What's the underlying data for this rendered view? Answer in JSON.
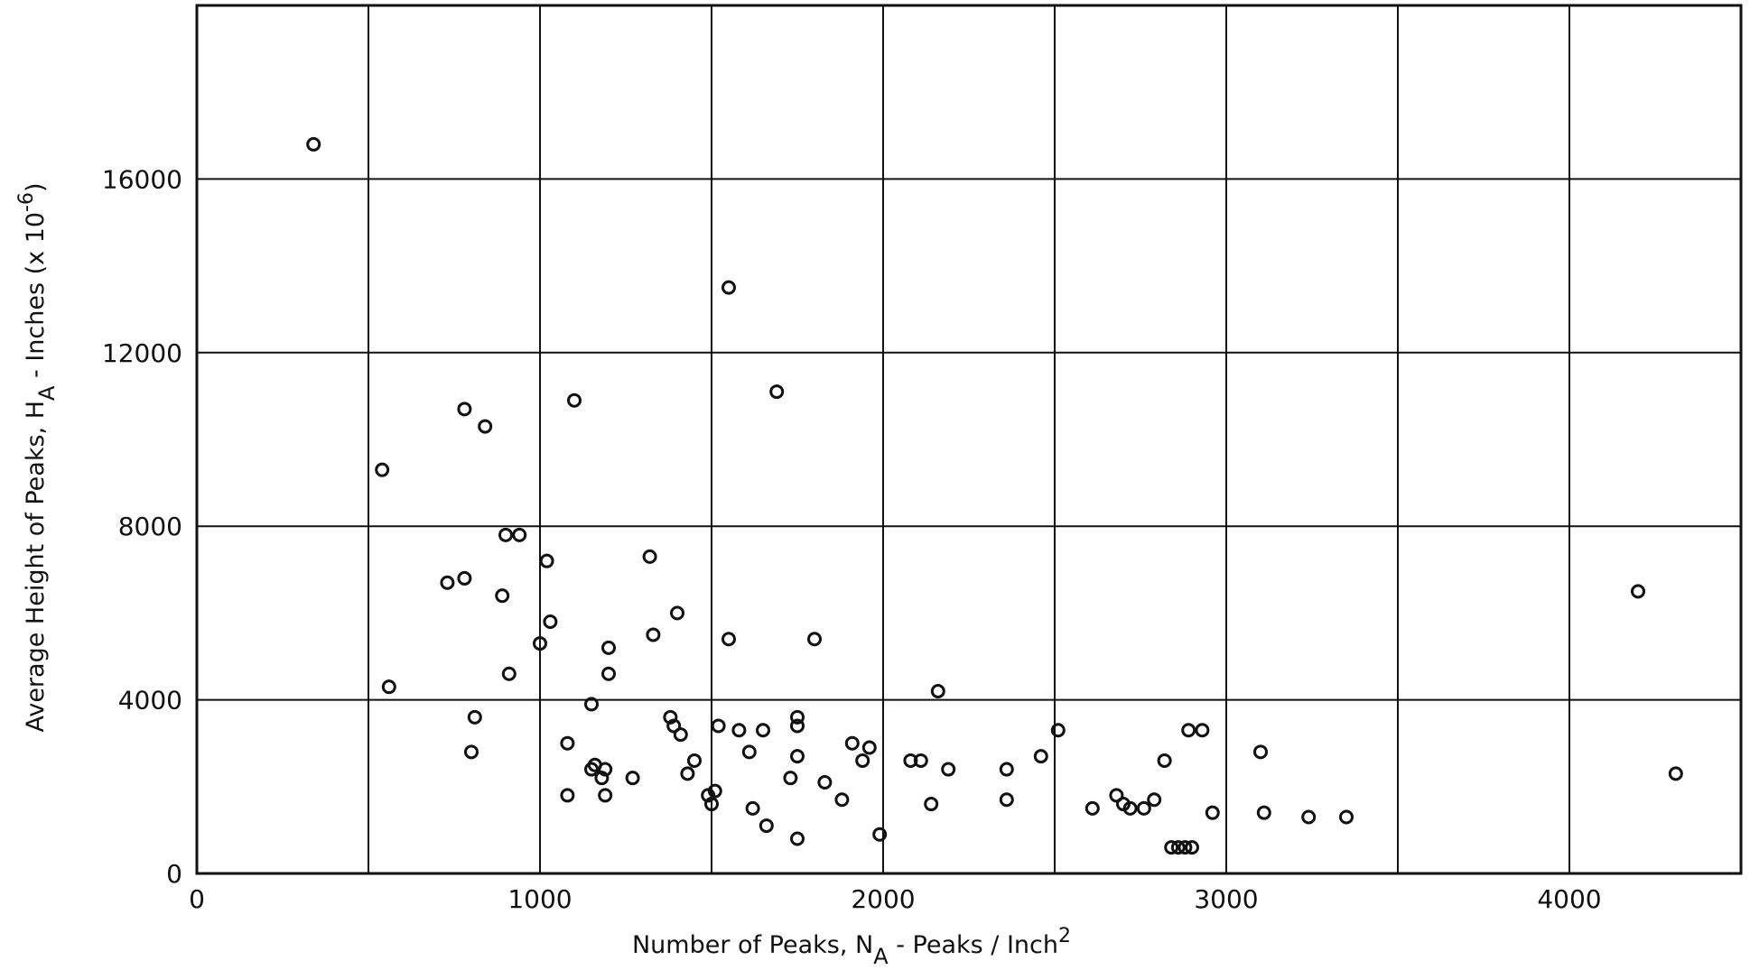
{
  "chart_data": {
    "type": "scatter",
    "title": "",
    "xlabel": {
      "text": "Number of Peaks, N",
      "subscript": "A",
      "suffix": " - Peaks / Inch",
      "superscript": "2"
    },
    "ylabel": {
      "text": "Average Height of Peaks, H",
      "subscript": "A",
      "suffix": " - Inches (x 10",
      "superscript": "-6",
      "closing": ")"
    },
    "xlim": [
      0,
      4500
    ],
    "ylim": [
      0,
      20000
    ],
    "x_ticks": [
      0,
      1000,
      2000,
      3000,
      4000
    ],
    "x_tick_labels": [
      "0",
      "1000",
      "2000",
      "3000",
      "4000"
    ],
    "x_gridlines": [
      0,
      500,
      1000,
      1500,
      2000,
      2500,
      3000,
      3500,
      4000,
      4500
    ],
    "y_ticks": [
      0,
      4000,
      8000,
      12000,
      16000
    ],
    "y_tick_labels": [
      "0",
      "4000",
      "8000",
      "12000",
      "16000"
    ],
    "y_gridlines": [
      0,
      4000,
      8000,
      12000,
      16000
    ],
    "grid": true,
    "marker": "open-circle",
    "points": [
      [
        340,
        16800
      ],
      [
        540,
        9300
      ],
      [
        560,
        4300
      ],
      [
        730,
        6700
      ],
      [
        780,
        10700
      ],
      [
        780,
        6800
      ],
      [
        800,
        2800
      ],
      [
        810,
        3600
      ],
      [
        840,
        10300
      ],
      [
        900,
        7800
      ],
      [
        940,
        7800
      ],
      [
        890,
        6400
      ],
      [
        910,
        4600
      ],
      [
        1000,
        5300
      ],
      [
        1020,
        7200
      ],
      [
        1030,
        5800
      ],
      [
        1080,
        3000
      ],
      [
        1080,
        1800
      ],
      [
        1100,
        10900
      ],
      [
        1150,
        3900
      ],
      [
        1150,
        2400
      ],
      [
        1160,
        2500
      ],
      [
        1180,
        2200
      ],
      [
        1190,
        1800
      ],
      [
        1190,
        2400
      ],
      [
        1200,
        5200
      ],
      [
        1200,
        4600
      ],
      [
        1270,
        2200
      ],
      [
        1320,
        7300
      ],
      [
        1330,
        5500
      ],
      [
        1380,
        3600
      ],
      [
        1390,
        3400
      ],
      [
        1400,
        6000
      ],
      [
        1410,
        3200
      ],
      [
        1430,
        2300
      ],
      [
        1450,
        2600
      ],
      [
        1490,
        1800
      ],
      [
        1500,
        1600
      ],
      [
        1510,
        1900
      ],
      [
        1520,
        3400
      ],
      [
        1550,
        13500
      ],
      [
        1550,
        5400
      ],
      [
        1580,
        3300
      ],
      [
        1610,
        2800
      ],
      [
        1620,
        1500
      ],
      [
        1650,
        3300
      ],
      [
        1660,
        1100
      ],
      [
        1690,
        11100
      ],
      [
        1730,
        2200
      ],
      [
        1750,
        3400
      ],
      [
        1750,
        3600
      ],
      [
        1750,
        2700
      ],
      [
        1750,
        800
      ],
      [
        1800,
        5400
      ],
      [
        1830,
        2100
      ],
      [
        1880,
        1700
      ],
      [
        1910,
        3000
      ],
      [
        1940,
        2600
      ],
      [
        1960,
        2900
      ],
      [
        1990,
        900
      ],
      [
        2080,
        2600
      ],
      [
        2110,
        2600
      ],
      [
        2140,
        1600
      ],
      [
        2160,
        4200
      ],
      [
        2190,
        2400
      ],
      [
        2360,
        2400
      ],
      [
        2360,
        1700
      ],
      [
        2460,
        2700
      ],
      [
        2510,
        3300
      ],
      [
        2610,
        1500
      ],
      [
        2680,
        1800
      ],
      [
        2700,
        1600
      ],
      [
        2720,
        1500
      ],
      [
        2760,
        1500
      ],
      [
        2790,
        1700
      ],
      [
        2820,
        2600
      ],
      [
        2840,
        600
      ],
      [
        2860,
        600
      ],
      [
        2880,
        600
      ],
      [
        2900,
        600
      ],
      [
        2890,
        3300
      ],
      [
        2930,
        3300
      ],
      [
        2960,
        1400
      ],
      [
        3100,
        2800
      ],
      [
        3110,
        1400
      ],
      [
        3240,
        1300
      ],
      [
        3350,
        1300
      ],
      [
        4200,
        6500
      ],
      [
        4310,
        2300
      ]
    ]
  }
}
